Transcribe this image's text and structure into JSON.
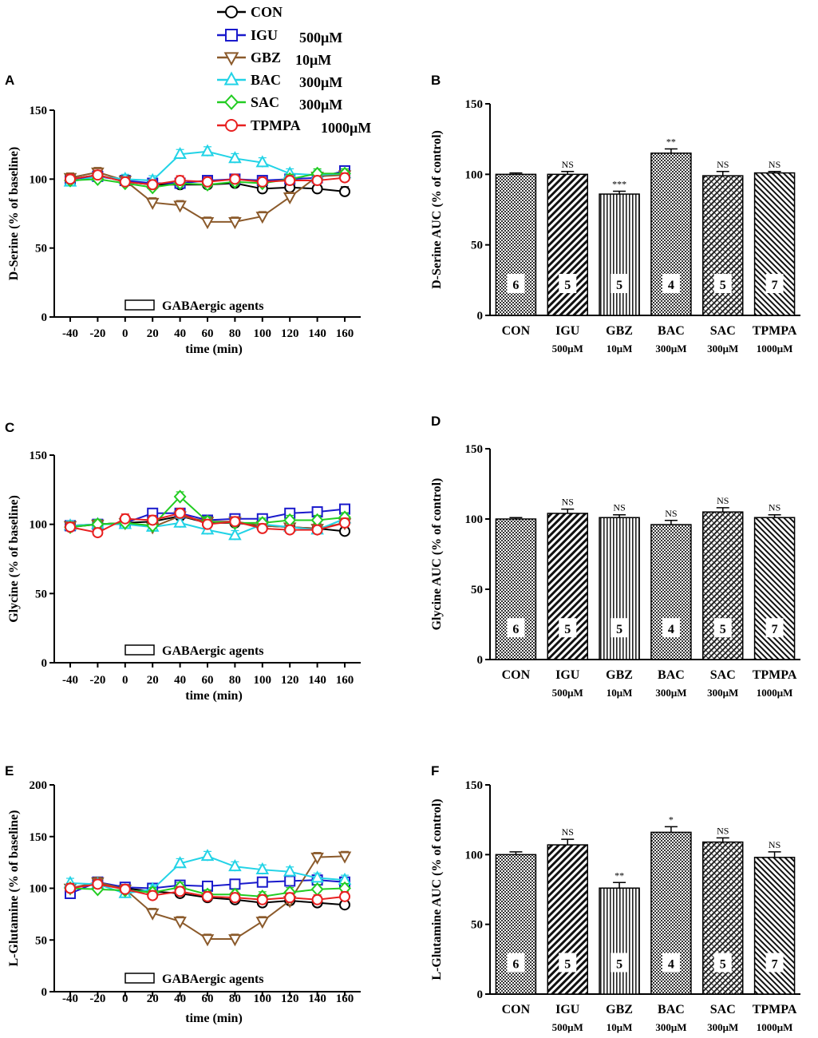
{
  "legend": [
    {
      "name": "CON",
      "conc": "",
      "color": "#000000",
      "marker": "circle"
    },
    {
      "name": "IGU",
      "conc": "500μM",
      "color": "#1a1acc",
      "marker": "square"
    },
    {
      "name": "GBZ",
      "conc": "10μM",
      "color": "#8b5a2b",
      "marker": "tri-down"
    },
    {
      "name": "BAC",
      "conc": "300μM",
      "color": "#22d3e6",
      "marker": "tri-up"
    },
    {
      "name": "SAC",
      "conc": "300μM",
      "color": "#22cc22",
      "marker": "diamond"
    },
    {
      "name": "TPMPA",
      "conc": "1000μM",
      "color": "#e82020",
      "marker": "circle"
    }
  ],
  "chart_data": [
    {
      "panel": "A",
      "type": "line",
      "ylabel": "D-Serine (% of baseline)",
      "xlabel": "time (min)",
      "ylim": [
        0,
        150
      ],
      "yticks": [
        0,
        50,
        100,
        150
      ],
      "x": [
        -40,
        -20,
        0,
        20,
        40,
        60,
        80,
        100,
        120,
        140,
        160
      ],
      "annotation": "GABAergic agents",
      "series": [
        {
          "name": "CON",
          "values": [
            100,
            103,
            98,
            96,
            96,
            96,
            97,
            93,
            94,
            93,
            91
          ]
        },
        {
          "name": "IGU",
          "values": [
            100,
            102,
            99,
            97,
            97,
            99,
            100,
            99,
            100,
            101,
            106
          ]
        },
        {
          "name": "GBZ",
          "values": [
            101,
            105,
            99,
            83,
            81,
            69,
            69,
            73,
            87,
            102,
            103
          ]
        },
        {
          "name": "BAC",
          "values": [
            98,
            102,
            100,
            99,
            118,
            120,
            115,
            112,
            104,
            103,
            104
          ]
        },
        {
          "name": "SAC",
          "values": [
            99,
            100,
            97,
            94,
            97,
            96,
            98,
            97,
            100,
            104,
            104
          ]
        },
        {
          "name": "TPMPA",
          "values": [
            100,
            103,
            98,
            96,
            99,
            98,
            100,
            98,
            99,
            99,
            101
          ]
        }
      ]
    },
    {
      "panel": "B",
      "type": "bar",
      "ylabel": "D-Serine AUC (% of  control)",
      "ylim": [
        0,
        150
      ],
      "yticks": [
        0,
        50,
        100,
        150
      ],
      "categories": [
        "CON",
        "IGU",
        "GBZ",
        "BAC",
        "SAC",
        "TPMPA"
      ],
      "subs": [
        "",
        "500μM",
        "10μM",
        "300μM",
        "300μM",
        "1000μM"
      ],
      "values": [
        100,
        100,
        86,
        115,
        99,
        101
      ],
      "errors": [
        1,
        2,
        2,
        3,
        3,
        1
      ],
      "n": [
        "6",
        "5",
        "5",
        "4",
        "5",
        "7"
      ],
      "sig": [
        "",
        "NS",
        "***",
        "**",
        "NS",
        "NS"
      ]
    },
    {
      "panel": "C",
      "type": "line",
      "ylabel": "Glycine (% of baseline)",
      "xlabel": "time (min)",
      "ylim": [
        0,
        150
      ],
      "yticks": [
        0,
        50,
        100,
        150
      ],
      "x": [
        -40,
        -20,
        0,
        20,
        40,
        60,
        80,
        100,
        120,
        140,
        160
      ],
      "annotation": "GABAergic agents",
      "series": [
        {
          "name": "CON",
          "values": [
            98,
            100,
            101,
            102,
            106,
            101,
            101,
            99,
            98,
            97,
            95
          ]
        },
        {
          "name": "IGU",
          "values": [
            99,
            100,
            101,
            108,
            108,
            103,
            104,
            104,
            108,
            109,
            111
          ]
        },
        {
          "name": "GBZ",
          "values": [
            99,
            100,
            101,
            98,
            106,
            102,
            102,
            99,
            98,
            97,
            101
          ]
        },
        {
          "name": "BAC",
          "values": [
            99,
            100,
            100,
            98,
            101,
            96,
            92,
            100,
            98,
            96,
            104
          ]
        },
        {
          "name": "SAC",
          "values": [
            98,
            100,
            101,
            99,
            120,
            102,
            101,
            101,
            103,
            103,
            105
          ]
        },
        {
          "name": "TPMPA",
          "values": [
            98,
            94,
            104,
            103,
            108,
            100,
            102,
            97,
            96,
            96,
            101
          ]
        }
      ]
    },
    {
      "panel": "D",
      "type": "bar",
      "ylabel": "Glycine AUC (% of  control)",
      "ylim": [
        0,
        150
      ],
      "yticks": [
        0,
        50,
        100,
        150
      ],
      "categories": [
        "CON",
        "IGU",
        "GBZ",
        "BAC",
        "SAC",
        "TPMPA"
      ],
      "subs": [
        "",
        "500μM",
        "10μM",
        "300μM",
        "300μM",
        "1000μM"
      ],
      "values": [
        100,
        104,
        101,
        96,
        105,
        101
      ],
      "errors": [
        1,
        3,
        2,
        3,
        3,
        2
      ],
      "n": [
        "6",
        "5",
        "5",
        "4",
        "5",
        "7"
      ],
      "sig": [
        "",
        "NS",
        "NS",
        "NS",
        "NS",
        "NS"
      ]
    },
    {
      "panel": "E",
      "type": "line",
      "ylabel": "L-Glutamine (% of baseline)",
      "xlabel": "time (min)",
      "ylim": [
        0,
        200
      ],
      "yticks": [
        0,
        50,
        100,
        150,
        200
      ],
      "x": [
        -40,
        -20,
        0,
        20,
        40,
        60,
        80,
        100,
        120,
        140,
        160
      ],
      "annotation": "GABAergic agents",
      "series": [
        {
          "name": "CON",
          "values": [
            100,
            105,
            100,
            97,
            95,
            91,
            89,
            86,
            88,
            86,
            84
          ]
        },
        {
          "name": "IGU",
          "values": [
            95,
            106,
            101,
            100,
            103,
            102,
            104,
            106,
            107,
            108,
            106
          ]
        },
        {
          "name": "GBZ",
          "values": [
            100,
            106,
            99,
            76,
            68,
            51,
            51,
            68,
            88,
            130,
            131
          ]
        },
        {
          "name": "BAC",
          "values": [
            105,
            104,
            95,
            99,
            124,
            131,
            121,
            118,
            116,
            110,
            108
          ]
        },
        {
          "name": "SAC",
          "values": [
            100,
            99,
            98,
            96,
            101,
            94,
            94,
            92,
            96,
            99,
            100
          ]
        },
        {
          "name": "TPMPA",
          "values": [
            100,
            104,
            99,
            93,
            97,
            92,
            91,
            89,
            91,
            89,
            92
          ]
        }
      ]
    },
    {
      "panel": "F",
      "type": "bar",
      "ylabel": "L-Glutamine AUC (% of  control)",
      "ylim": [
        0,
        150
      ],
      "yticks": [
        0,
        50,
        100,
        150
      ],
      "categories": [
        "CON",
        "IGU",
        "GBZ",
        "BAC",
        "SAC",
        "TPMPA"
      ],
      "subs": [
        "",
        "500μM",
        "10μM",
        "300μM",
        "300μM",
        "1000μM"
      ],
      "values": [
        100,
        107,
        76,
        116,
        109,
        98
      ],
      "errors": [
        2,
        4,
        4,
        4,
        3,
        4
      ],
      "n": [
        "6",
        "5",
        "5",
        "4",
        "5",
        "7"
      ],
      "sig": [
        "",
        "NS",
        "**",
        "*",
        "NS",
        "NS"
      ]
    }
  ]
}
